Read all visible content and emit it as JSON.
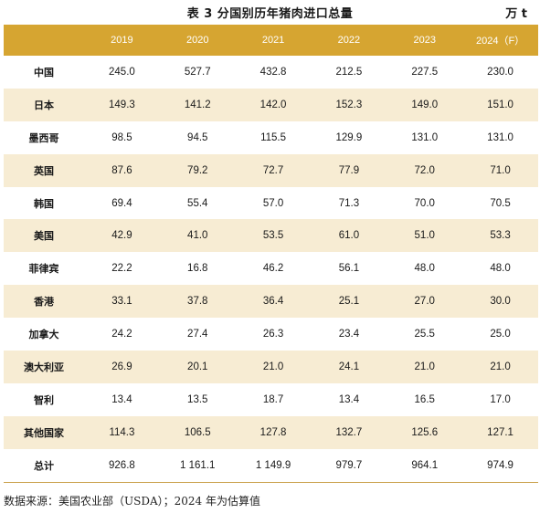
{
  "title": "表 3  分国别历年猪肉进口总量",
  "unit": "万 t",
  "columns": [
    "",
    "2019",
    "2020",
    "2021",
    "2022",
    "2023",
    "2024（F）"
  ],
  "rows": [
    {
      "label": "中国",
      "values": [
        "245.0",
        "527.7",
        "432.8",
        "212.5",
        "227.5",
        "230.0"
      ]
    },
    {
      "label": "日本",
      "values": [
        "149.3",
        "141.2",
        "142.0",
        "152.3",
        "149.0",
        "151.0"
      ]
    },
    {
      "label": "墨西哥",
      "values": [
        "98.5",
        "94.5",
        "115.5",
        "129.9",
        "131.0",
        "131.0"
      ]
    },
    {
      "label": "英国",
      "values": [
        "87.6",
        "79.2",
        "72.7",
        "77.9",
        "72.0",
        "71.0"
      ]
    },
    {
      "label": "韩国",
      "values": [
        "69.4",
        "55.4",
        "57.0",
        "71.3",
        "70.0",
        "70.5"
      ]
    },
    {
      "label": "美国",
      "values": [
        "42.9",
        "41.0",
        "53.5",
        "61.0",
        "51.0",
        "53.3"
      ]
    },
    {
      "label": "菲律宾",
      "values": [
        "22.2",
        "16.8",
        "46.2",
        "56.1",
        "48.0",
        "48.0"
      ]
    },
    {
      "label": "香港",
      "values": [
        "33.1",
        "37.8",
        "36.4",
        "25.1",
        "27.0",
        "30.0"
      ]
    },
    {
      "label": "加拿大",
      "values": [
        "24.2",
        "27.4",
        "26.3",
        "23.4",
        "25.5",
        "25.0"
      ]
    },
    {
      "label": "澳大利亚",
      "values": [
        "26.9",
        "20.1",
        "21.0",
        "24.1",
        "21.0",
        "21.0"
      ]
    },
    {
      "label": "智利",
      "values": [
        "13.4",
        "13.5",
        "18.7",
        "13.4",
        "16.5",
        "17.0"
      ]
    },
    {
      "label": "其他国家",
      "values": [
        "114.3",
        "106.5",
        "127.8",
        "132.7",
        "125.6",
        "127.1"
      ]
    },
    {
      "label": "总计",
      "values": [
        "926.8",
        "1 161.1",
        "1 149.9",
        "979.7",
        "964.1",
        "974.9"
      ]
    }
  ],
  "source": "数据来源：美国农业部（USDA）；2024 年为估算值",
  "colors": {
    "header_bg": "#d6a531",
    "header_text": "#ffffff",
    "alt_row_bg": "#f7ecd3"
  }
}
